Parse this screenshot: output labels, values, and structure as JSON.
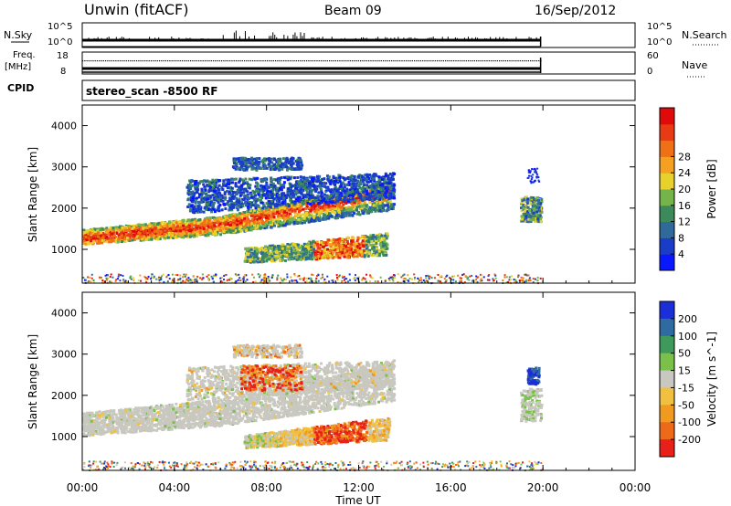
{
  "header": {
    "site": "Unwin (fitACF)",
    "beam": "Beam 09",
    "date": "16/Sep/2012"
  },
  "panels": {
    "nsky": {
      "left_label": "N.Sky",
      "tick_top": "10^5",
      "tick_bottom": "10^0",
      "right_label": "N.Search",
      "right_tick_top": "10^5",
      "right_tick_bottom": "10^0"
    },
    "freq": {
      "left_label_1": "Freq.",
      "left_label_2": "[MHz]",
      "tick_top": "18",
      "tick_bottom": "8",
      "right_label": "Nave",
      "right_tick_top": "60",
      "right_tick_bottom": "0"
    },
    "cpid": {
      "label": "CPID",
      "value": "stereo_scan -8500 RF"
    }
  },
  "chart_data": [
    {
      "type": "heatmap",
      "name": "power-panel",
      "x": {
        "label": "Time UT",
        "ticks": [
          "00:00",
          "04:00",
          "08:00",
          "12:00",
          "16:00",
          "20:00",
          "00:00"
        ],
        "range_hours": [
          0,
          24
        ]
      },
      "y": {
        "label": "Slant Range [km]",
        "ticks": [
          1000,
          2000,
          3000,
          4000
        ],
        "range_km": [
          180,
          4500
        ]
      },
      "colorbar": {
        "label": "Power [dB]",
        "ticks": [
          "4",
          "8",
          "12",
          "16",
          "20",
          "24",
          "28"
        ],
        "colors": [
          "#0a18ff",
          "#1a3dc8",
          "#2f6a9a",
          "#3c8a5a",
          "#74b44a",
          "#e8d12a",
          "#f5a020",
          "#f07018",
          "#e83a14",
          "#e00a0a"
        ]
      },
      "data_extent_hours": [
        0,
        19.9
      ]
    },
    {
      "type": "heatmap",
      "name": "velocity-panel",
      "x": {
        "label": "Time UT",
        "ticks": [
          "00:00",
          "04:00",
          "08:00",
          "12:00",
          "16:00",
          "20:00",
          "00:00"
        ],
        "range_hours": [
          0,
          24
        ]
      },
      "y": {
        "label": "Slant Range [km]",
        "ticks": [
          1000,
          2000,
          3000,
          4000
        ],
        "range_km": [
          180,
          4500
        ]
      },
      "colorbar": {
        "label": "Velocity [m s^-1]",
        "ticks": [
          "200",
          "100",
          "50",
          "15",
          "-15",
          "-50",
          "-100",
          "-200"
        ],
        "colors": [
          "#1a2fd8",
          "#2f6aa0",
          "#3e9a5a",
          "#7ac04a",
          "#c8c8c0",
          "#f0c040",
          "#f09a20",
          "#ee6a18",
          "#e8201a"
        ]
      },
      "data_extent_hours": [
        0,
        19.9
      ]
    }
  ],
  "xaxis": {
    "label": "Time UT",
    "ticks": [
      "00:00",
      "04:00",
      "08:00",
      "12:00",
      "16:00",
      "20:00",
      "00:00"
    ]
  }
}
